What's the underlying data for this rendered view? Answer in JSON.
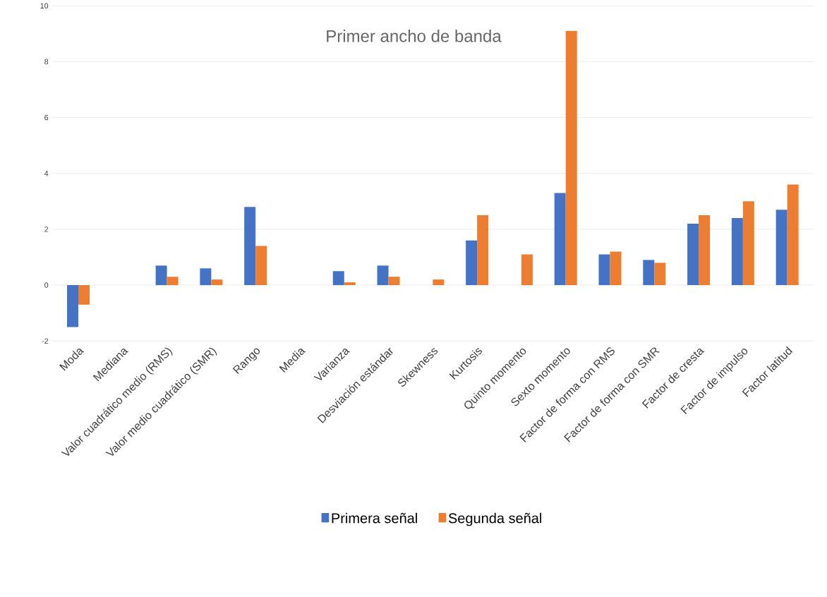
{
  "chart_data": {
    "type": "bar",
    "title": "Primer ancho de banda",
    "categories": [
      "Moda",
      "Mediana",
      "Valor cuadrático medio (RMS)",
      "Valor medio cuadrático (SMR)",
      "Rango",
      "Media",
      "Varianza",
      "Desviación estándar",
      "Skewness",
      "Kurtosis",
      "Quinto momento",
      "Sexto momento",
      "Factor de forma con RMS",
      "Factor de forma con SMR",
      "Factor de cresta",
      "Factor de impulso",
      "Factor latitud"
    ],
    "series": [
      {
        "name": "Primera señal",
        "color": "#4472c4",
        "values": [
          -1.5,
          0,
          0.7,
          0.6,
          2.8,
          0,
          0.5,
          0.7,
          0,
          1.6,
          0,
          3.3,
          1.1,
          0.9,
          2.2,
          2.4,
          2.7
        ]
      },
      {
        "name": "Segunda señal",
        "color": "#ed7d31",
        "values": [
          -0.7,
          0,
          0.3,
          0.2,
          1.4,
          0,
          0.1,
          0.3,
          0.2,
          2.5,
          1.1,
          9.1,
          1.2,
          0.8,
          2.5,
          3.0,
          3.6
        ]
      }
    ],
    "ylim": [
      -2,
      10
    ],
    "yticks": [
      -2,
      0,
      2,
      4,
      6,
      8,
      10
    ],
    "grid": "y",
    "legend": "bottom"
  }
}
